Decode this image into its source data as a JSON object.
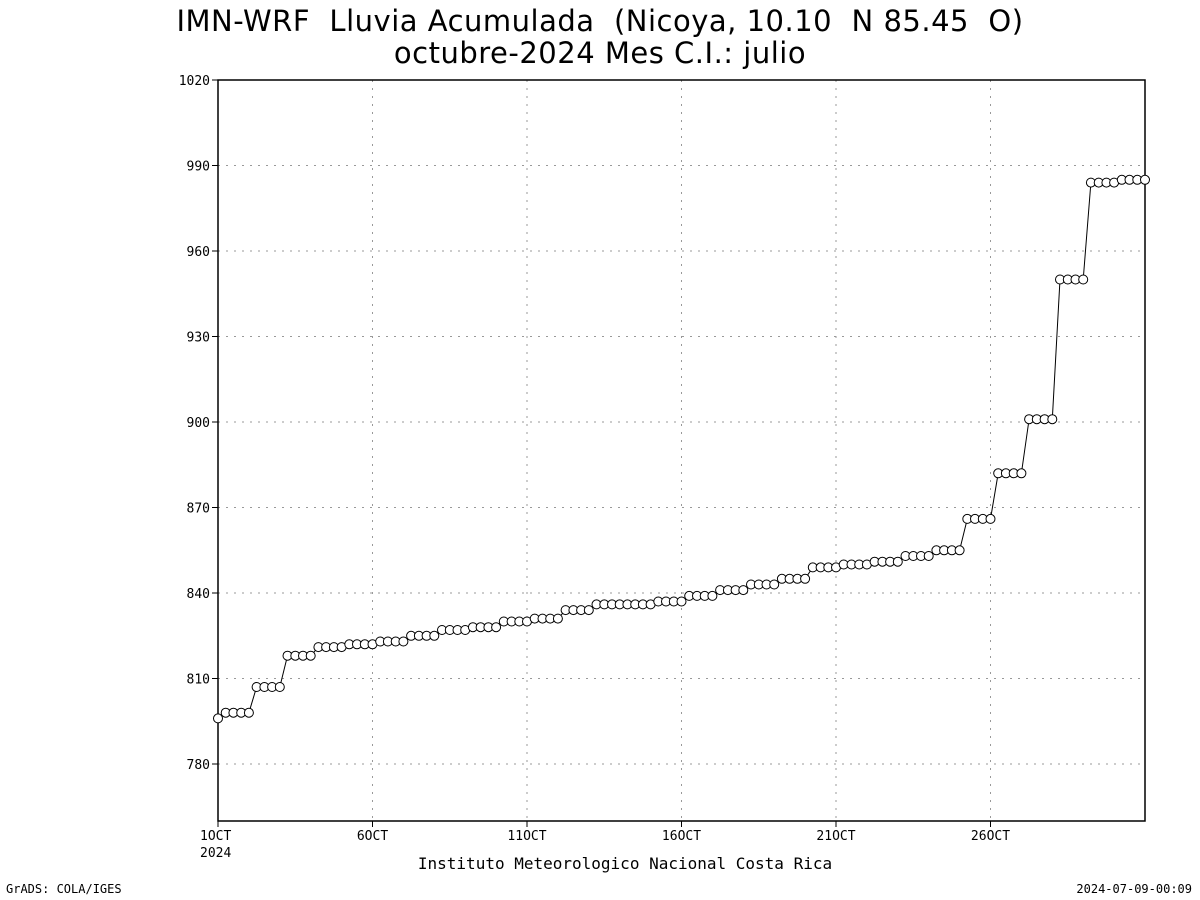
{
  "title_line1": "IMN-WRF  Lluvia Acumulada  (Nicoya, 10.10  N 85.45  O)",
  "title_line2": "octubre-2024 Mes C.I.: julio",
  "footer_left": "GrADS: COLA/IGES",
  "footer_right": "2024-07-09-00:09",
  "chart_data": {
    "type": "line",
    "title": "IMN-WRF  Lluvia Acumulada  (Nicoya, 10.10  N 85.45  O)",
    "subtitle": "octubre-2024 Mes C.I.: julio",
    "xlabel": "Instituto Meteorologico Nacional Costa Rica",
    "ylabel": "",
    "ylim": [
      760,
      1020
    ],
    "yticks": [
      780,
      810,
      840,
      870,
      900,
      930,
      960,
      990,
      1020
    ],
    "xticks": [
      {
        "day": 1,
        "label": "1OCT",
        "sublabel": "2024"
      },
      {
        "day": 6,
        "label": "6OCT"
      },
      {
        "day": 11,
        "label": "11OCT"
      },
      {
        "day": 16,
        "label": "16OCT"
      },
      {
        "day": 21,
        "label": "21OCT"
      },
      {
        "day": 26,
        "label": "26OCT"
      }
    ],
    "xlim_days": [
      1,
      31
    ],
    "grid": true,
    "marker": "open-circle",
    "step_days": 0.25,
    "series": [
      {
        "values": [
          796,
          798,
          798,
          798,
          798,
          807,
          807,
          807,
          807,
          818,
          818,
          818,
          818,
          821,
          821,
          821,
          821,
          822,
          822,
          822,
          822,
          823,
          823,
          823,
          823,
          825,
          825,
          825,
          825,
          827,
          827,
          827,
          827,
          828,
          828,
          828,
          828,
          830,
          830,
          830,
          830,
          831,
          831,
          831,
          831,
          834,
          834,
          834,
          834,
          836,
          836,
          836,
          836,
          836,
          836,
          836,
          836,
          837,
          837,
          837,
          837,
          839,
          839,
          839,
          839,
          841,
          841,
          841,
          841,
          843,
          843,
          843,
          843,
          845,
          845,
          845,
          845,
          849,
          849,
          849,
          849,
          850,
          850,
          850,
          850,
          851,
          851,
          851,
          851,
          853,
          853,
          853,
          853,
          855,
          855,
          855,
          855,
          866,
          866,
          866,
          866,
          882,
          882,
          882,
          882,
          901,
          901,
          901,
          901,
          950,
          950,
          950,
          950,
          984,
          984,
          984,
          984,
          985,
          985,
          985,
          985
        ]
      }
    ]
  }
}
